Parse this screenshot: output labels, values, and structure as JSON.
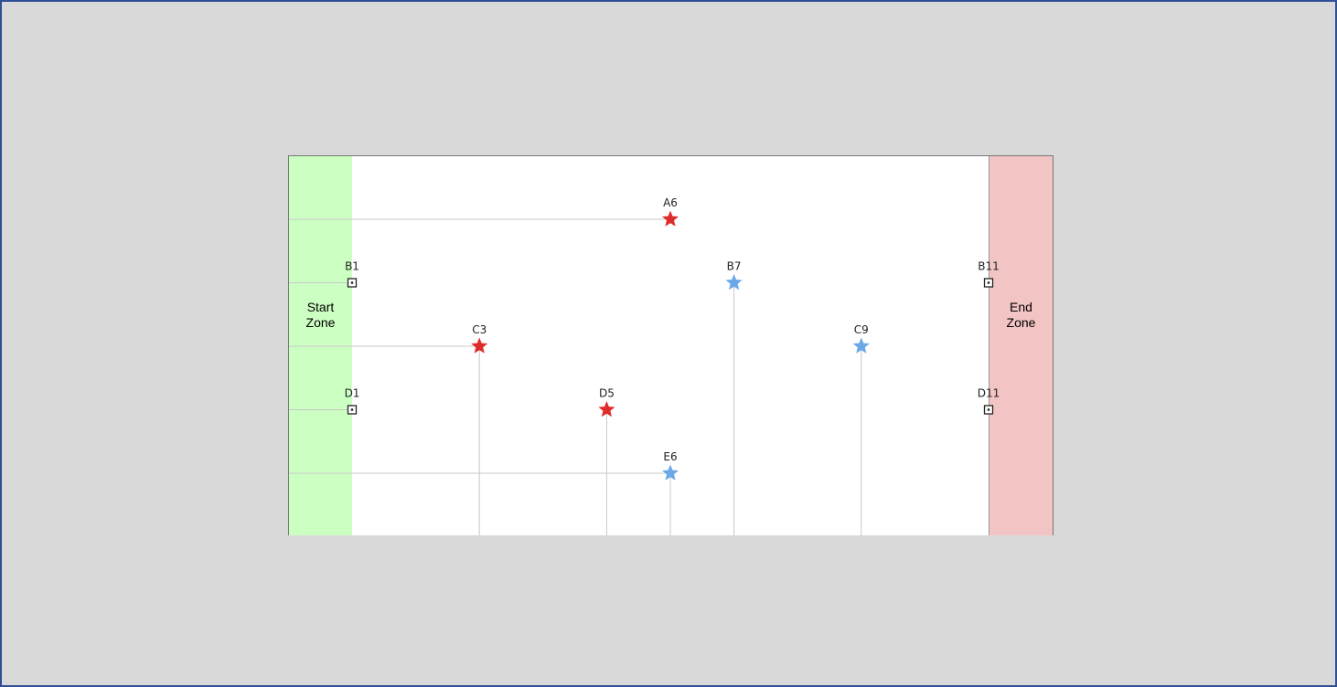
{
  "zones": {
    "start_label": "Start\nZone",
    "end_label": "End\nZone",
    "start_color": "#ccffc2",
    "end_color": "#f2c4c4"
  },
  "grid": {
    "rows": [
      "A",
      "B",
      "C",
      "D",
      "E"
    ],
    "cols": [
      1,
      2,
      3,
      4,
      5,
      6,
      7,
      8,
      9,
      10,
      11
    ]
  },
  "markers": [
    {
      "id": "A6",
      "kind": "star",
      "color": "red"
    },
    {
      "id": "B1",
      "kind": "square",
      "color": "black"
    },
    {
      "id": "B7",
      "kind": "star",
      "color": "blue"
    },
    {
      "id": "B11",
      "kind": "square",
      "color": "black"
    },
    {
      "id": "C3",
      "kind": "star",
      "color": "red"
    },
    {
      "id": "C9",
      "kind": "star",
      "color": "blue"
    },
    {
      "id": "D1",
      "kind": "square",
      "color": "black"
    },
    {
      "id": "D5",
      "kind": "star",
      "color": "red"
    },
    {
      "id": "D11",
      "kind": "square",
      "color": "black"
    },
    {
      "id": "E6",
      "kind": "star",
      "color": "blue"
    }
  ],
  "colors": {
    "red": "#e02b2b",
    "blue": "#6aa8e8",
    "black": "#222222",
    "line": "#c8c8c8"
  }
}
